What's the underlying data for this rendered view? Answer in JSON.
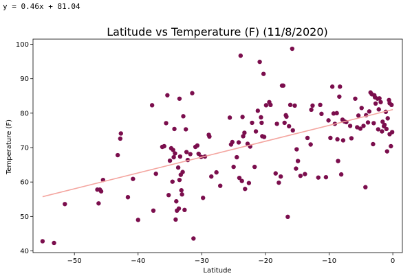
{
  "equation_text": "y = 0.46x + 81.04",
  "chart_data": {
    "type": "scatter",
    "title": "Latitude vs Temperature (F) (11/8/2020)",
    "xlabel": "Latitude",
    "ylabel": "Temperature (F)",
    "xlim": [
      -56.5,
      1.5
    ],
    "ylim": [
      39.5,
      101.5
    ],
    "xticks": [
      -50,
      -40,
      -30,
      -20,
      -10,
      0
    ],
    "yticks": [
      40,
      50,
      60,
      70,
      80,
      90,
      100
    ],
    "grid": false,
    "point_color": "#7b0e4d",
    "regression": {
      "slope": 0.46,
      "intercept": 81.04,
      "x_range": [
        -55,
        0
      ],
      "color": "#f4a6a0"
    },
    "points": [
      [
        -55,
        42.8
      ],
      [
        -53.2,
        42.3
      ],
      [
        -51.5,
        53.6
      ],
      [
        -46.4,
        57.8
      ],
      [
        -46,
        57.8
      ],
      [
        -46.2,
        53.8
      ],
      [
        -45.8,
        57.3
      ],
      [
        -45.5,
        60.6
      ],
      [
        -43.2,
        67.8
      ],
      [
        -42.8,
        72.6
      ],
      [
        -42.7,
        74.1
      ],
      [
        -41.6,
        55.6
      ],
      [
        -40.8,
        60.9
      ],
      [
        -40,
        49
      ],
      [
        -37.8,
        82.3
      ],
      [
        -37.6,
        51.7
      ],
      [
        -37.2,
        62.4
      ],
      [
        -36.2,
        70.2
      ],
      [
        -35.9,
        70.4
      ],
      [
        -35.6,
        77.1
      ],
      [
        -35.4,
        85.2
      ],
      [
        -35.2,
        56.2
      ],
      [
        -35,
        66.2
      ],
      [
        -34.8,
        69.8
      ],
      [
        -34.6,
        60.1
      ],
      [
        -34.5,
        69.3
      ],
      [
        -34.4,
        67.2
      ],
      [
        -34.3,
        75.4
      ],
      [
        -34.2,
        68.3
      ],
      [
        -34.1,
        49.1
      ],
      [
        -34,
        54.4
      ],
      [
        -33.9,
        51.7
      ],
      [
        -33.7,
        64.2
      ],
      [
        -33.6,
        52.3
      ],
      [
        -33.5,
        60.6
      ],
      [
        -33.5,
        84.2
      ],
      [
        -33.4,
        67.4
      ],
      [
        -33.3,
        62.1
      ],
      [
        -33.2,
        57.6
      ],
      [
        -33.1,
        56.4
      ],
      [
        -33,
        62.9
      ],
      [
        -32.9,
        79.1
      ],
      [
        -32.7,
        51.9
      ],
      [
        -32.5,
        75.3
      ],
      [
        -32.4,
        68.7
      ],
      [
        -32.2,
        66.4
      ],
      [
        -31.8,
        68.1
      ],
      [
        -31.5,
        85.8
      ],
      [
        -31.3,
        43.6
      ],
      [
        -31,
        70.2
      ],
      [
        -30.7,
        70.6
      ],
      [
        -30.5,
        68.2
      ],
      [
        -30.1,
        67.3
      ],
      [
        -29.8,
        55.4
      ],
      [
        -29.5,
        67.4
      ],
      [
        -28.9,
        73.7
      ],
      [
        -28.8,
        73.2
      ],
      [
        -28.5,
        61.6
      ],
      [
        -27.7,
        62.8
      ],
      [
        -27.1,
        58.9
      ],
      [
        -25.6,
        78.7
      ],
      [
        -25.4,
        70.9
      ],
      [
        -25.2,
        71.6
      ],
      [
        -25,
        64.4
      ],
      [
        -24.5,
        67.2
      ],
      [
        -24.2,
        71.5
      ],
      [
        -24.1,
        61.2
      ],
      [
        -23.9,
        96.7
      ],
      [
        -23.7,
        60.3
      ],
      [
        -23.6,
        78.9
      ],
      [
        -23.5,
        73.3
      ],
      [
        -23.3,
        74.3
      ],
      [
        -23.2,
        58
      ],
      [
        -22.8,
        71.1
      ],
      [
        -22.6,
        59.7
      ],
      [
        -22.4,
        70.3
      ],
      [
        -22.1,
        77.2
      ],
      [
        -21.7,
        64.4
      ],
      [
        -21.5,
        74.7
      ],
      [
        -21.2,
        80.7
      ],
      [
        -20.9,
        94.9
      ],
      [
        -20.7,
        78.8
      ],
      [
        -20.6,
        77.2
      ],
      [
        -20.5,
        73.3
      ],
      [
        -20.3,
        91.4
      ],
      [
        -20.2,
        73.1
      ],
      [
        -19.9,
        82.3
      ],
      [
        -19.4,
        83.2
      ],
      [
        -19.2,
        82.4
      ],
      [
        -18.4,
        62.5
      ],
      [
        -18.2,
        76.9
      ],
      [
        -17.9,
        59.8
      ],
      [
        -17.6,
        61.6
      ],
      [
        -17.4,
        88
      ],
      [
        -17.2,
        88
      ],
      [
        -17,
        77.2
      ],
      [
        -16.8,
        79.4
      ],
      [
        -16.7,
        79
      ],
      [
        -16.5,
        49.9
      ],
      [
        -16.3,
        76.2
      ],
      [
        -16.1,
        82.4
      ],
      [
        -15.8,
        98.7
      ],
      [
        -15.7,
        75
      ],
      [
        -15.4,
        82.2
      ],
      [
        -15.2,
        63.9
      ],
      [
        -15.1,
        69.5
      ],
      [
        -14.9,
        66.1
      ],
      [
        -14.5,
        61.8
      ],
      [
        -13.8,
        62.3
      ],
      [
        -13.4,
        72.8
      ],
      [
        -12.9,
        70.9
      ],
      [
        -12.8,
        81
      ],
      [
        -12.6,
        82.2
      ],
      [
        -11.7,
        61.3
      ],
      [
        -11.4,
        82.4
      ],
      [
        -11.2,
        79.8
      ],
      [
        -10.5,
        61.4
      ],
      [
        -10.1,
        77.9
      ],
      [
        -9.8,
        72.8
      ],
      [
        -9.5,
        87.7
      ],
      [
        -9.3,
        79.9
      ],
      [
        -9.1,
        76.9
      ],
      [
        -8.8,
        80
      ],
      [
        -8.7,
        72.4
      ],
      [
        -8.6,
        66.1
      ],
      [
        -8.4,
        84.8
      ],
      [
        -8.3,
        87.7
      ],
      [
        -8.1,
        62.2
      ],
      [
        -7.9,
        78.1
      ],
      [
        -7.8,
        72.1
      ],
      [
        -7.6,
        77.6
      ],
      [
        -7.3,
        77.4
      ],
      [
        -6.7,
        76.3
      ],
      [
        -6.5,
        72.7
      ],
      [
        -5.9,
        84.2
      ],
      [
        -5.6,
        75.9
      ],
      [
        -5.4,
        79.3
      ],
      [
        -5.1,
        75.5
      ],
      [
        -4.9,
        81.5
      ],
      [
        -4.6,
        76.3
      ],
      [
        -4.2,
        79.4
      ],
      [
        -3.9,
        77.3
      ],
      [
        -3.7,
        80.5
      ],
      [
        -3.5,
        86
      ],
      [
        -3.3,
        85.5
      ],
      [
        -3.1,
        71
      ],
      [
        -3,
        77.1
      ],
      [
        -2.9,
        85.2
      ],
      [
        -2.8,
        84.6
      ],
      [
        -2.7,
        82.8
      ],
      [
        -2.4,
        84.2
      ],
      [
        -2.3,
        75.3
      ],
      [
        -2.2,
        81.1
      ],
      [
        -2.1,
        84.3
      ],
      [
        -1.9,
        83.2
      ],
      [
        -1.7,
        74.7
      ],
      [
        -1.6,
        77.5
      ],
      [
        -1.4,
        76.2
      ],
      [
        -1.3,
        76.6
      ],
      [
        -1.1,
        80.4
      ],
      [
        -0.9,
        68.9
      ],
      [
        -0.8,
        78.5
      ],
      [
        -0.6,
        83.8
      ],
      [
        -0.5,
        82.9
      ],
      [
        -0.3,
        70.4
      ],
      [
        -0.2,
        82.4
      ],
      [
        -0.1,
        74.5
      ],
      [
        -4.3,
        58.5
      ],
      [
        -1,
        75.4
      ],
      [
        -0.5,
        73.9
      ]
    ]
  }
}
